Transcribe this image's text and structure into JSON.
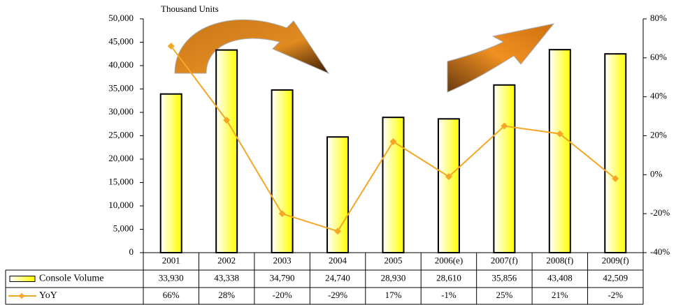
{
  "chart_data": {
    "type": "bar",
    "title": "Thousand Units",
    "categories": [
      "2001",
      "2002",
      "2003",
      "2004",
      "2005",
      "2006(e)",
      "2007(f)",
      "2008(f)",
      "2009(f)"
    ],
    "series": [
      {
        "name": "Console Volume",
        "type": "bar",
        "color": "#ffff00",
        "values": [
          33930,
          43338,
          34790,
          24740,
          28930,
          28610,
          35856,
          43408,
          42509
        ],
        "value_labels": [
          "33,930",
          "43,338",
          "34,790",
          "24,740",
          "28,930",
          "28,610",
          "35,856",
          "43,408",
          "42,509"
        ]
      },
      {
        "name": "YoY",
        "type": "line",
        "axis": "y2",
        "color": "#f5a623",
        "values": [
          66,
          28,
          -20,
          -29,
          17,
          -1,
          25,
          21,
          -2
        ],
        "value_labels": [
          "66%",
          "28%",
          "-20%",
          "-29%",
          "17%",
          "-1%",
          "25%",
          "21%",
          "-2%"
        ]
      }
    ],
    "ylim": [
      0,
      50000
    ],
    "yticks": [
      {
        "value": 0,
        "label": "0"
      },
      {
        "value": 5000,
        "label": "5,000"
      },
      {
        "value": 10000,
        "label": "10,000"
      },
      {
        "value": 15000,
        "label": "15,000"
      },
      {
        "value": 20000,
        "label": "20,000"
      },
      {
        "value": 25000,
        "label": "25,000"
      },
      {
        "value": 30000,
        "label": "30,000"
      },
      {
        "value": 35000,
        "label": "35,000"
      },
      {
        "value": 40000,
        "label": "40,000"
      },
      {
        "value": 45000,
        "label": "45,000"
      },
      {
        "value": 50000,
        "label": "50,000"
      }
    ],
    "y2lim": [
      -40,
      80
    ],
    "y2ticks": [
      {
        "value": -40,
        "label": "-40%"
      },
      {
        "value": -20,
        "label": "-20%"
      },
      {
        "value": 0,
        "label": "0%"
      },
      {
        "value": 20,
        "label": "20%"
      },
      {
        "value": 40,
        "label": "40%"
      },
      {
        "value": 60,
        "label": "60%"
      },
      {
        "value": 80,
        "label": "80%"
      }
    ],
    "grid": false
  }
}
